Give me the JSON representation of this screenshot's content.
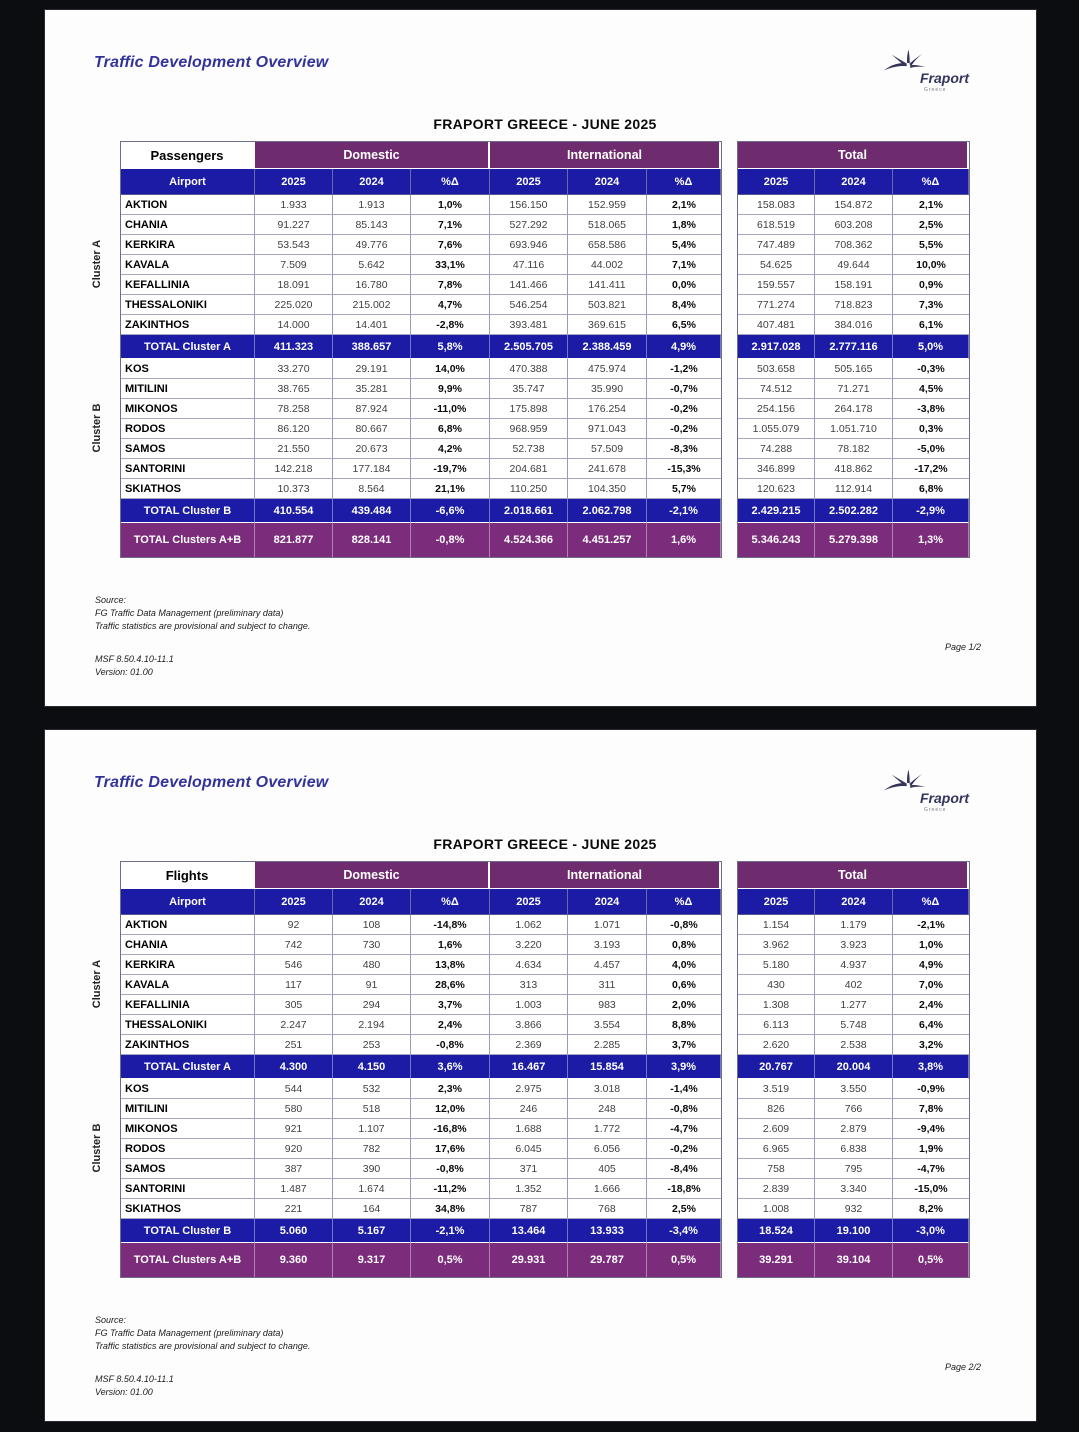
{
  "colors": {
    "frame_bg": "#0c0d11",
    "page_bg": "#fdfdfd",
    "header_purple": "#6e2b6e",
    "header_navy": "#1b1ba5",
    "grand_purple": "#7b2d7c",
    "title_blue": "#32329b"
  },
  "pages": [
    {
      "title": "Traffic Development Overview",
      "logo": {
        "brand": "Fraport",
        "sub": "Greece"
      },
      "report_title": "FRAPORT GREECE - JUNE 2025",
      "table": {
        "label": "Passengers",
        "group_headers": [
          "Domestic",
          "International",
          "Total"
        ],
        "airport_header": "Airport",
        "value_headers": [
          "2025",
          "2024",
          "%Δ"
        ],
        "cluster_a": {
          "label": "Cluster A",
          "rows": [
            {
              "airport": "AKTION",
              "values": [
                "1.933",
                "1.913",
                "1,0%",
                "156.150",
                "152.959",
                "2,1%",
                "158.083",
                "154.872",
                "2,1%"
              ]
            },
            {
              "airport": "CHANIA",
              "values": [
                "91.227",
                "85.143",
                "7,1%",
                "527.292",
                "518.065",
                "1,8%",
                "618.519",
                "603.208",
                "2,5%"
              ]
            },
            {
              "airport": "KERKIRA",
              "values": [
                "53.543",
                "49.776",
                "7,6%",
                "693.946",
                "658.586",
                "5,4%",
                "747.489",
                "708.362",
                "5,5%"
              ]
            },
            {
              "airport": "KAVALA",
              "values": [
                "7.509",
                "5.642",
                "33,1%",
                "47.116",
                "44.002",
                "7,1%",
                "54.625",
                "49.644",
                "10,0%"
              ]
            },
            {
              "airport": "KEFALLINIA",
              "values": [
                "18.091",
                "16.780",
                "7,8%",
                "141.466",
                "141.411",
                "0,0%",
                "159.557",
                "158.191",
                "0,9%"
              ]
            },
            {
              "airport": "THESSALONIKI",
              "values": [
                "225.020",
                "215.002",
                "4,7%",
                "546.254",
                "503.821",
                "8,4%",
                "771.274",
                "718.823",
                "7,3%"
              ]
            },
            {
              "airport": "ZAKINTHOS",
              "values": [
                "14.000",
                "14.401",
                "-2,8%",
                "393.481",
                "369.615",
                "6,5%",
                "407.481",
                "384.016",
                "6,1%"
              ]
            }
          ]
        },
        "total_a": {
          "label": "TOTAL Cluster A",
          "values": [
            "411.323",
            "388.657",
            "5,8%",
            "2.505.705",
            "2.388.459",
            "4,9%",
            "2.917.028",
            "2.777.116",
            "5,0%"
          ]
        },
        "cluster_b": {
          "label": "Cluster B",
          "rows": [
            {
              "airport": "KOS",
              "values": [
                "33.270",
                "29.191",
                "14,0%",
                "470.388",
                "475.974",
                "-1,2%",
                "503.658",
                "505.165",
                "-0,3%"
              ]
            },
            {
              "airport": "MITILINI",
              "values": [
                "38.765",
                "35.281",
                "9,9%",
                "35.747",
                "35.990",
                "-0,7%",
                "74.512",
                "71.271",
                "4,5%"
              ]
            },
            {
              "airport": "MIKONOS",
              "values": [
                "78.258",
                "87.924",
                "-11,0%",
                "175.898",
                "176.254",
                "-0,2%",
                "254.156",
                "264.178",
                "-3,8%"
              ]
            },
            {
              "airport": "RODOS",
              "values": [
                "86.120",
                "80.667",
                "6,8%",
                "968.959",
                "971.043",
                "-0,2%",
                "1.055.079",
                "1.051.710",
                "0,3%"
              ]
            },
            {
              "airport": "SAMOS",
              "values": [
                "21.550",
                "20.673",
                "4,2%",
                "52.738",
                "57.509",
                "-8,3%",
                "74.288",
                "78.182",
                "-5,0%"
              ]
            },
            {
              "airport": "SANTORINI",
              "values": [
                "142.218",
                "177.184",
                "-19,7%",
                "204.681",
                "241.678",
                "-15,3%",
                "346.899",
                "418.862",
                "-17,2%"
              ]
            },
            {
              "airport": "SKIATHOS",
              "values": [
                "10.373",
                "8.564",
                "21,1%",
                "110.250",
                "104.350",
                "5,7%",
                "120.623",
                "112.914",
                "6,8%"
              ]
            }
          ]
        },
        "total_b": {
          "label": "TOTAL Cluster B",
          "values": [
            "410.554",
            "439.484",
            "-6,6%",
            "2.018.661",
            "2.062.798",
            "-2,1%",
            "2.429.215",
            "2.502.282",
            "-2,9%"
          ]
        },
        "total_ab": {
          "label": "TOTAL Clusters A+B",
          "values": [
            "821.877",
            "828.141",
            "-0,8%",
            "4.524.366",
            "4.451.257",
            "1,6%",
            "5.346.243",
            "5.279.398",
            "1,3%"
          ]
        }
      },
      "footer": {
        "source_label": "Source:",
        "source_line1": "FG Traffic Data Management (preliminary data)",
        "source_line2": "Traffic statistics are provisional and subject to change.",
        "msf": "MSF 8.50.4.10-11.1",
        "version": "Version: 01.00",
        "page": "Page 1/2"
      }
    },
    {
      "title": "Traffic Development Overview",
      "logo": {
        "brand": "Fraport",
        "sub": "Greece"
      },
      "report_title": "FRAPORT GREECE - JUNE 2025",
      "table": {
        "label": "Flights",
        "group_headers": [
          "Domestic",
          "International",
          "Total"
        ],
        "airport_header": "Airport",
        "value_headers": [
          "2025",
          "2024",
          "%Δ"
        ],
        "cluster_a": {
          "label": "Cluster A",
          "rows": [
            {
              "airport": "AKTION",
              "values": [
                "92",
                "108",
                "-14,8%",
                "1.062",
                "1.071",
                "-0,8%",
                "1.154",
                "1.179",
                "-2,1%"
              ]
            },
            {
              "airport": "CHANIA",
              "values": [
                "742",
                "730",
                "1,6%",
                "3.220",
                "3.193",
                "0,8%",
                "3.962",
                "3.923",
                "1,0%"
              ]
            },
            {
              "airport": "KERKIRA",
              "values": [
                "546",
                "480",
                "13,8%",
                "4.634",
                "4.457",
                "4,0%",
                "5.180",
                "4.937",
                "4,9%"
              ]
            },
            {
              "airport": "KAVALA",
              "values": [
                "117",
                "91",
                "28,6%",
                "313",
                "311",
                "0,6%",
                "430",
                "402",
                "7,0%"
              ]
            },
            {
              "airport": "KEFALLINIA",
              "values": [
                "305",
                "294",
                "3,7%",
                "1.003",
                "983",
                "2,0%",
                "1.308",
                "1.277",
                "2,4%"
              ]
            },
            {
              "airport": "THESSALONIKI",
              "values": [
                "2.247",
                "2.194",
                "2,4%",
                "3.866",
                "3.554",
                "8,8%",
                "6.113",
                "5.748",
                "6,4%"
              ]
            },
            {
              "airport": "ZAKINTHOS",
              "values": [
                "251",
                "253",
                "-0,8%",
                "2.369",
                "2.285",
                "3,7%",
                "2.620",
                "2.538",
                "3,2%"
              ]
            }
          ]
        },
        "total_a": {
          "label": "TOTAL Cluster A",
          "values": [
            "4.300",
            "4.150",
            "3,6%",
            "16.467",
            "15.854",
            "3,9%",
            "20.767",
            "20.004",
            "3,8%"
          ]
        },
        "cluster_b": {
          "label": "Cluster B",
          "rows": [
            {
              "airport": "KOS",
              "values": [
                "544",
                "532",
                "2,3%",
                "2.975",
                "3.018",
                "-1,4%",
                "3.519",
                "3.550",
                "-0,9%"
              ]
            },
            {
              "airport": "MITILINI",
              "values": [
                "580",
                "518",
                "12,0%",
                "246",
                "248",
                "-0,8%",
                "826",
                "766",
                "7,8%"
              ]
            },
            {
              "airport": "MIKONOS",
              "values": [
                "921",
                "1.107",
                "-16,8%",
                "1.688",
                "1.772",
                "-4,7%",
                "2.609",
                "2.879",
                "-9,4%"
              ]
            },
            {
              "airport": "RODOS",
              "values": [
                "920",
                "782",
                "17,6%",
                "6.045",
                "6.056",
                "-0,2%",
                "6.965",
                "6.838",
                "1,9%"
              ]
            },
            {
              "airport": "SAMOS",
              "values": [
                "387",
                "390",
                "-0,8%",
                "371",
                "405",
                "-8,4%",
                "758",
                "795",
                "-4,7%"
              ]
            },
            {
              "airport": "SANTORINI",
              "values": [
                "1.487",
                "1.674",
                "-11,2%",
                "1.352",
                "1.666",
                "-18,8%",
                "2.839",
                "3.340",
                "-15,0%"
              ]
            },
            {
              "airport": "SKIATHOS",
              "values": [
                "221",
                "164",
                "34,8%",
                "787",
                "768",
                "2,5%",
                "1.008",
                "932",
                "8,2%"
              ]
            }
          ]
        },
        "total_b": {
          "label": "TOTAL Cluster B",
          "values": [
            "5.060",
            "5.167",
            "-2,1%",
            "13.464",
            "13.933",
            "-3,4%",
            "18.524",
            "19.100",
            "-3,0%"
          ]
        },
        "total_ab": {
          "label": "TOTAL Clusters A+B",
          "values": [
            "9.360",
            "9.317",
            "0,5%",
            "29.931",
            "29.787",
            "0,5%",
            "39.291",
            "39.104",
            "0,5%"
          ]
        }
      },
      "footer": {
        "source_label": "Source:",
        "source_line1": "FG Traffic Data Management (preliminary data)",
        "source_line2": "Traffic statistics are provisional and subject to change.",
        "msf": "MSF 8.50.4.10-11.1",
        "version": "Version: 01.00",
        "page": "Page 2/2"
      }
    }
  ]
}
